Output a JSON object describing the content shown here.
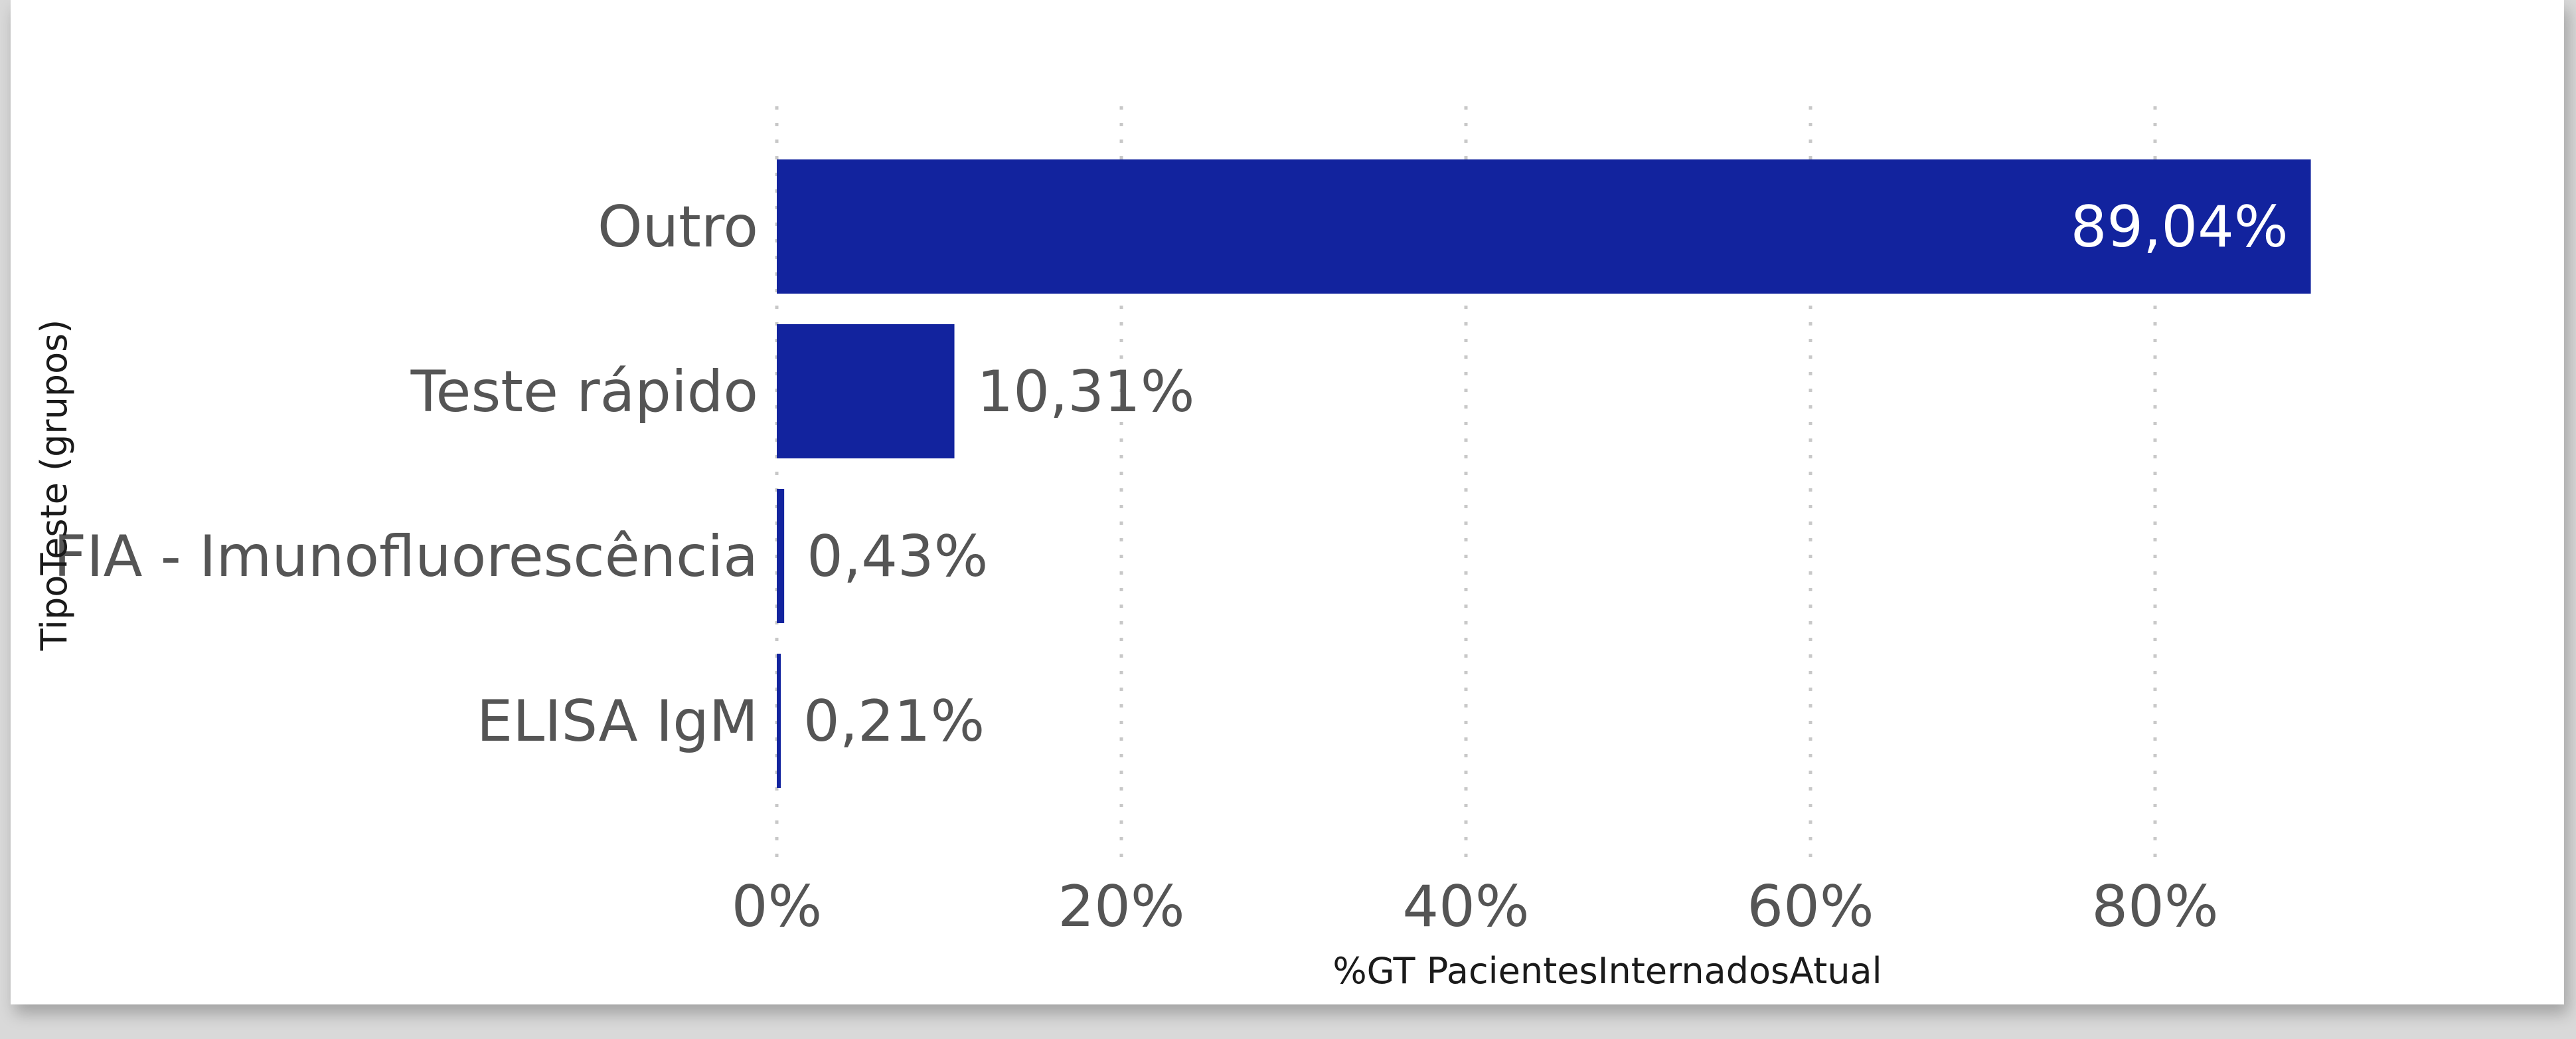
{
  "chart_data": {
    "type": "bar",
    "orientation": "horizontal",
    "categories": [
      "Outro",
      "Teste rápido",
      "FIA - Imunofluorescência",
      "ELISA IgM"
    ],
    "values": [
      89.04,
      10.31,
      0.43,
      0.21
    ],
    "data_labels": [
      "89,04%",
      "10,31%",
      "0,43%",
      "0,21%"
    ],
    "xticks": [
      0,
      20,
      40,
      60,
      80
    ],
    "xtick_labels": [
      "0%",
      "20%",
      "40%",
      "60%",
      "80%"
    ],
    "xlim": [
      0,
      100
    ],
    "xlabel": "%GT PacientesInternadosAtual",
    "ylabel": "TipoTeste (grupos)",
    "grid": "vertical dashed",
    "bar_color": "#12239E",
    "label_color_inside": "#ffffff",
    "label_color_outside": "#555555"
  }
}
